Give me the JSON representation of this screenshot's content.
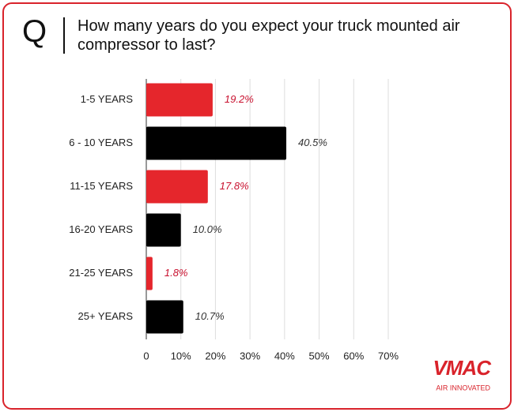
{
  "question_mark": "Q",
  "chart_data": {
    "type": "bar",
    "orientation": "horizontal",
    "title": "How many years do you expect your truck mounted air compressor to last?",
    "categories": [
      "1-5 YEARS",
      "6 - 10 YEARS",
      "11-15 YEARS",
      "16-20 YEARS",
      "21-25 YEARS",
      "25+ YEARS"
    ],
    "values": [
      19.2,
      40.5,
      17.8,
      10.0,
      1.8,
      10.7
    ],
    "value_labels": [
      "19.2%",
      "40.5%",
      "17.8%",
      "10.0%",
      "1.8%",
      "10.7%"
    ],
    "colors": [
      "#e5262c",
      "#000000",
      "#e5262c",
      "#000000",
      "#e5262c",
      "#000000"
    ],
    "label_colors": [
      "#c8102e",
      "#333333",
      "#c8102e",
      "#333333",
      "#c8102e",
      "#333333"
    ],
    "xlim": [
      0,
      70
    ],
    "xticks": [
      0,
      {
        "value": 10,
        "label": "10%"
      },
      {
        "value": 20,
        "label": "20%"
      },
      {
        "value": 30,
        "label": "30%"
      },
      {
        "value": 40,
        "label": "40%"
      },
      {
        "value": 50,
        "label": "50%"
      },
      {
        "value": 60,
        "label": "60%"
      },
      {
        "value": 70,
        "label": "70%"
      }
    ],
    "grid": true
  },
  "logo": {
    "name": "VMAC",
    "tagline": "AIR INNOVATED"
  }
}
